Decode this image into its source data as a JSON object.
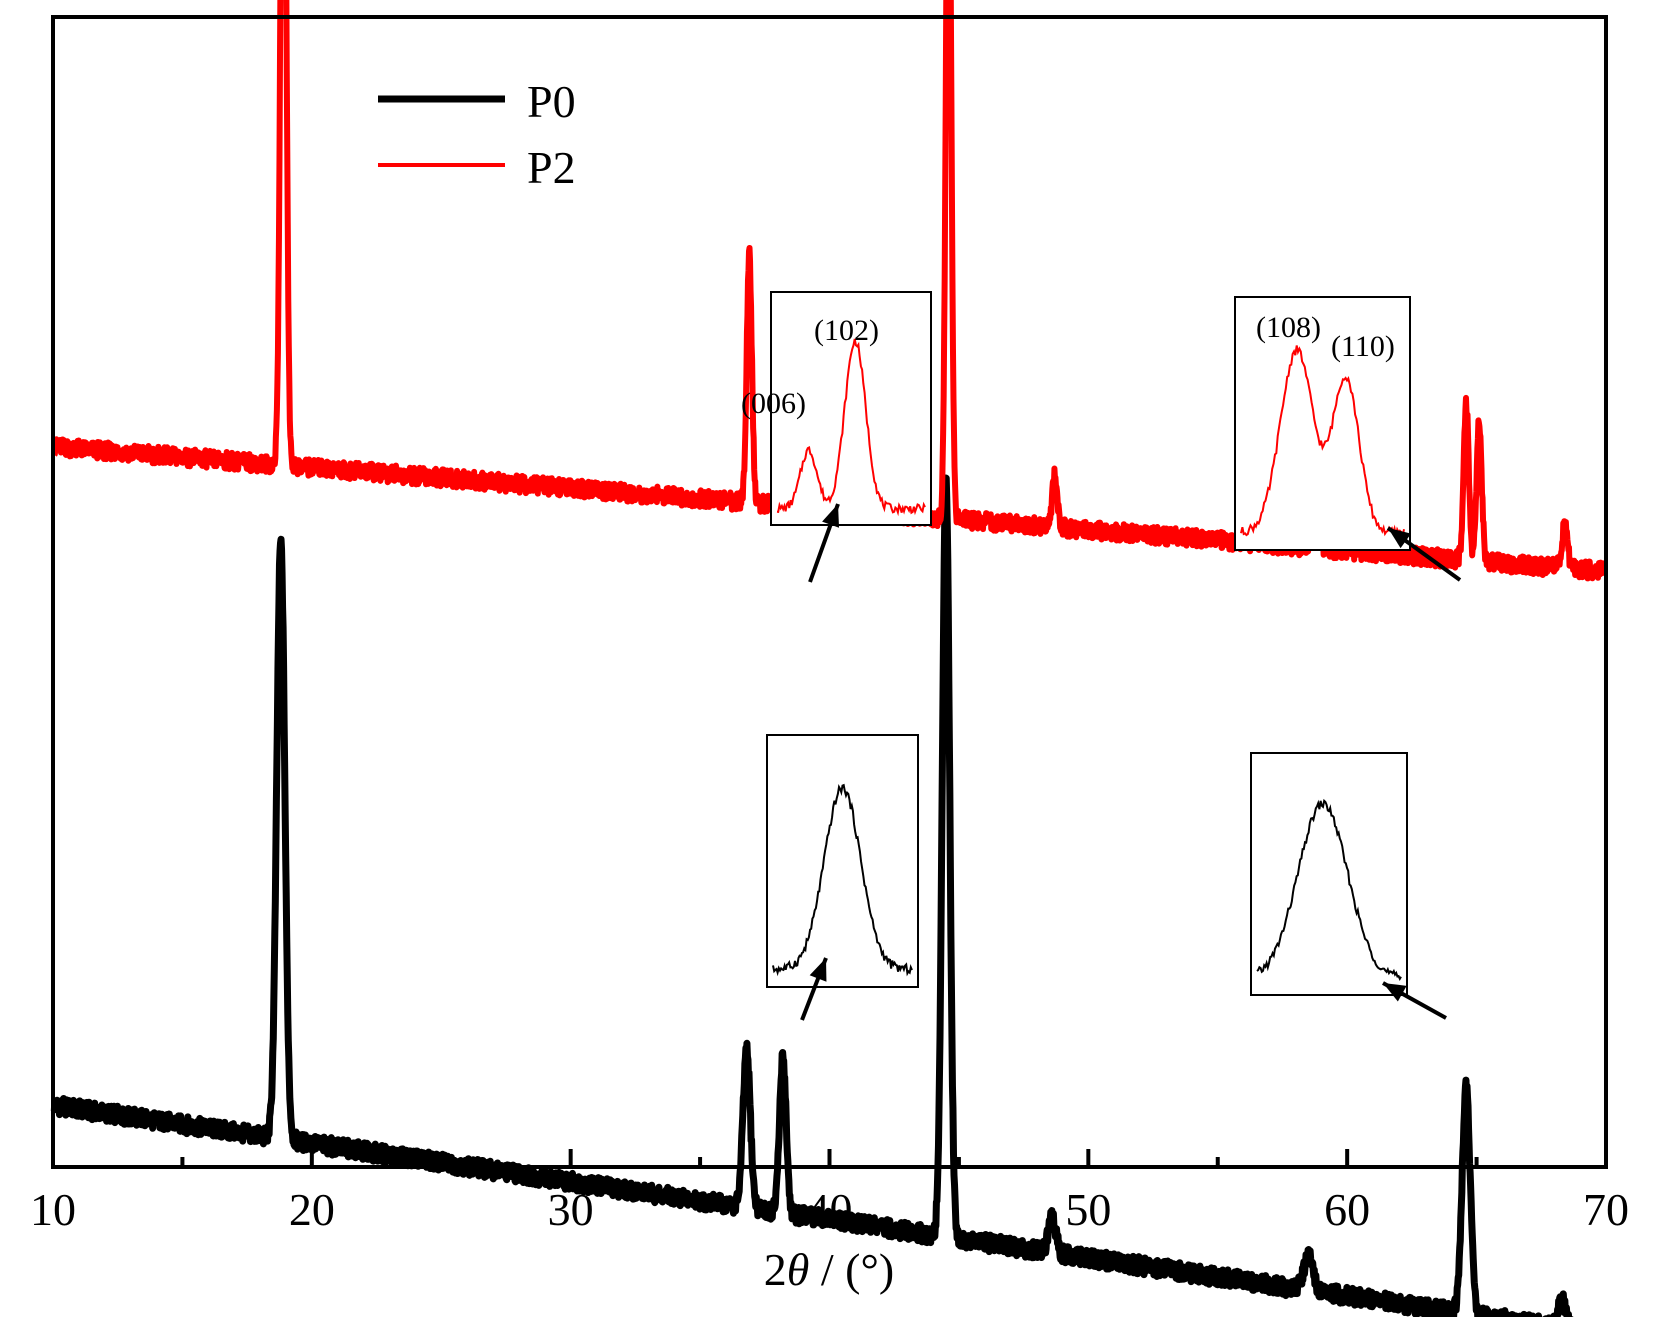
{
  "chart_data": {
    "type": "line",
    "title": "",
    "xlabel_prefix": "2",
    "xlabel_symbol": "θ",
    "xlabel_suffix": " / (°)",
    "ylabel": "",
    "xlim": [
      10,
      70
    ],
    "x_ticks": [
      10,
      20,
      30,
      40,
      50,
      60,
      70
    ],
    "x_minor_ticks": [
      15,
      25,
      35,
      45,
      55,
      65
    ],
    "y_ticks_shown": false,
    "grid": false,
    "legend_position": "top-left",
    "series": [
      {
        "name": "P0",
        "color": "#000000",
        "baseline": 0.1,
        "baseline_slope": -0.0011,
        "peaks": [
          {
            "x": 18.8,
            "height": 1.72,
            "width": 0.22
          },
          {
            "x": 36.8,
            "height": 0.45,
            "width": 0.2
          },
          {
            "x": 38.2,
            "height": 0.45,
            "width": 0.18
          },
          {
            "x": 44.5,
            "height": 2.2,
            "width": 0.2
          },
          {
            "x": 48.6,
            "height": 0.1,
            "width": 0.2
          },
          {
            "x": 58.5,
            "height": 0.1,
            "width": 0.25
          },
          {
            "x": 64.6,
            "height": 0.65,
            "width": 0.22
          },
          {
            "x": 68.3,
            "height": 0.08,
            "width": 0.2
          }
        ]
      },
      {
        "name": "P2",
        "color": "#ff0000",
        "baseline": 2.0,
        "baseline_slope": -0.0006,
        "peaks": [
          {
            "x": 18.9,
            "height": 2.45,
            "width": 0.15
          },
          {
            "x": 36.9,
            "height": 0.72,
            "width": 0.14
          },
          {
            "x": 38.1,
            "height": 0.1,
            "width": 0.1
          },
          {
            "x": 38.4,
            "height": 0.38,
            "width": 0.12
          },
          {
            "x": 44.6,
            "height": 2.22,
            "width": 0.14
          },
          {
            "x": 48.7,
            "height": 0.15,
            "width": 0.14
          },
          {
            "x": 58.8,
            "height": 0.2,
            "width": 0.16
          },
          {
            "x": 64.6,
            "height": 0.45,
            "width": 0.14
          },
          {
            "x": 65.1,
            "height": 0.4,
            "width": 0.14
          },
          {
            "x": 68.4,
            "height": 0.12,
            "width": 0.16
          }
        ]
      }
    ],
    "insets": [
      {
        "name": "P2-first-inset",
        "series": "P2",
        "labels": [
          "(006)",
          "(102)"
        ]
      },
      {
        "name": "P2-second-inset",
        "series": "P2",
        "labels": [
          "(108)",
          "(110)"
        ]
      },
      {
        "name": "P0-first-inset",
        "series": "P0",
        "labels": []
      },
      {
        "name": "P0-second-inset",
        "series": "P0",
        "labels": []
      }
    ]
  }
}
